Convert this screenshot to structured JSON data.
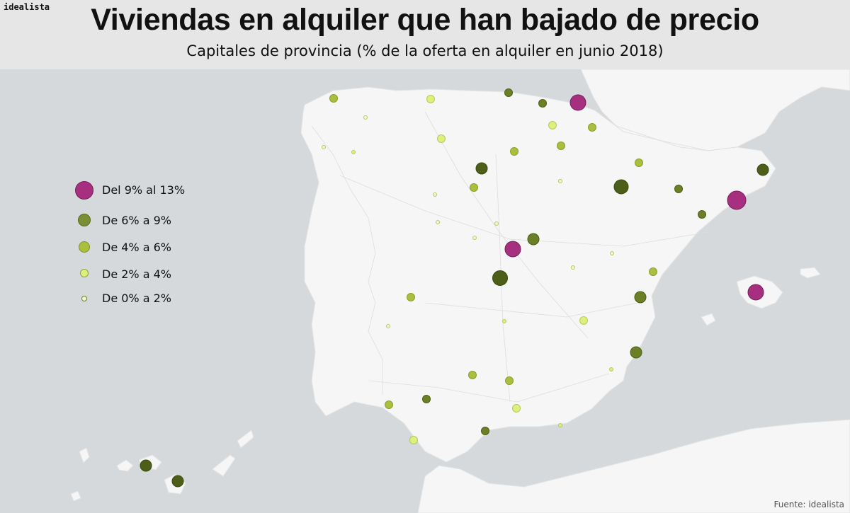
{
  "header": {
    "brand": "idealista",
    "title": "Viviendas en alquiler que han bajado de precio",
    "subtitle": "Capitales de provincia (% de la oferta en alquiler en junio 2018)"
  },
  "legend": {
    "items": [
      {
        "label": "Del 9% al 13%",
        "category": "9-13"
      },
      {
        "label": "De 6% a 9%",
        "category": "6-9"
      },
      {
        "label": "De 4% a 6%",
        "category": "4-6"
      },
      {
        "label": "De 2% a 4%",
        "category": "2-4"
      },
      {
        "label": "De 0% a 2%",
        "category": "0-2"
      }
    ]
  },
  "colors": {
    "9-13": "#a6307f",
    "6-9": "#6b7f26",
    "4-6": "#aabf3d",
    "2-4": "#ddf07e",
    "0-2": "#f2f7d2",
    "6-9-dark": "#4c5e17"
  },
  "source": "Fuente: idealista"
}
